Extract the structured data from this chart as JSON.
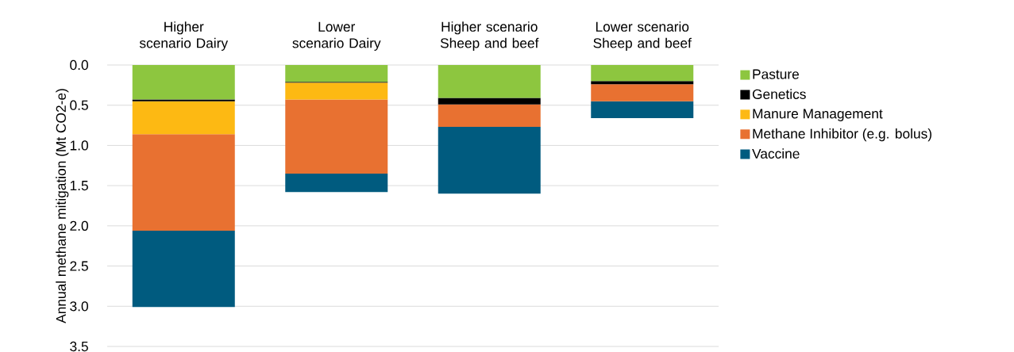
{
  "chart_data": {
    "type": "bar",
    "stacked": true,
    "ylabel": "Annual methane mitigation (Mt CO2-e)",
    "categories": [
      "Higher scenario Dairy",
      "Lower scenario Dairy",
      "Higher scenario Sheep and beef",
      "Lower scenario Sheep and beef"
    ],
    "series": [
      {
        "name": "Pasture",
        "color": "#8dc63f",
        "values": [
          0.43,
          0.21,
          0.41,
          0.2
        ]
      },
      {
        "name": "Genetics",
        "color": "#000000",
        "values": [
          0.02,
          0.01,
          0.08,
          0.04
        ]
      },
      {
        "name": "Manure Management",
        "color": "#fdb913",
        "values": [
          0.41,
          0.21,
          0,
          0
        ]
      },
      {
        "name": "Methane Inhibitor (e.g. bolus)",
        "color": "#e87131",
        "values": [
          1.2,
          0.92,
          0.28,
          0.21
        ]
      },
      {
        "name": "Vaccine",
        "color": "#005b7f",
        "values": [
          0.95,
          0.23,
          0.83,
          0.21
        ]
      }
    ],
    "ylim": [
      3.5,
      0
    ],
    "yticks": [
      {
        "value": 0,
        "label": "0.0"
      },
      0.5,
      {
        "value": 1,
        "label": "1.0"
      },
      1.5,
      {
        "value": 2,
        "label": "2.0"
      },
      2.5,
      {
        "value": 3,
        "label": "3.0"
      },
      3.5
    ],
    "grid": "y",
    "legend": "right"
  }
}
